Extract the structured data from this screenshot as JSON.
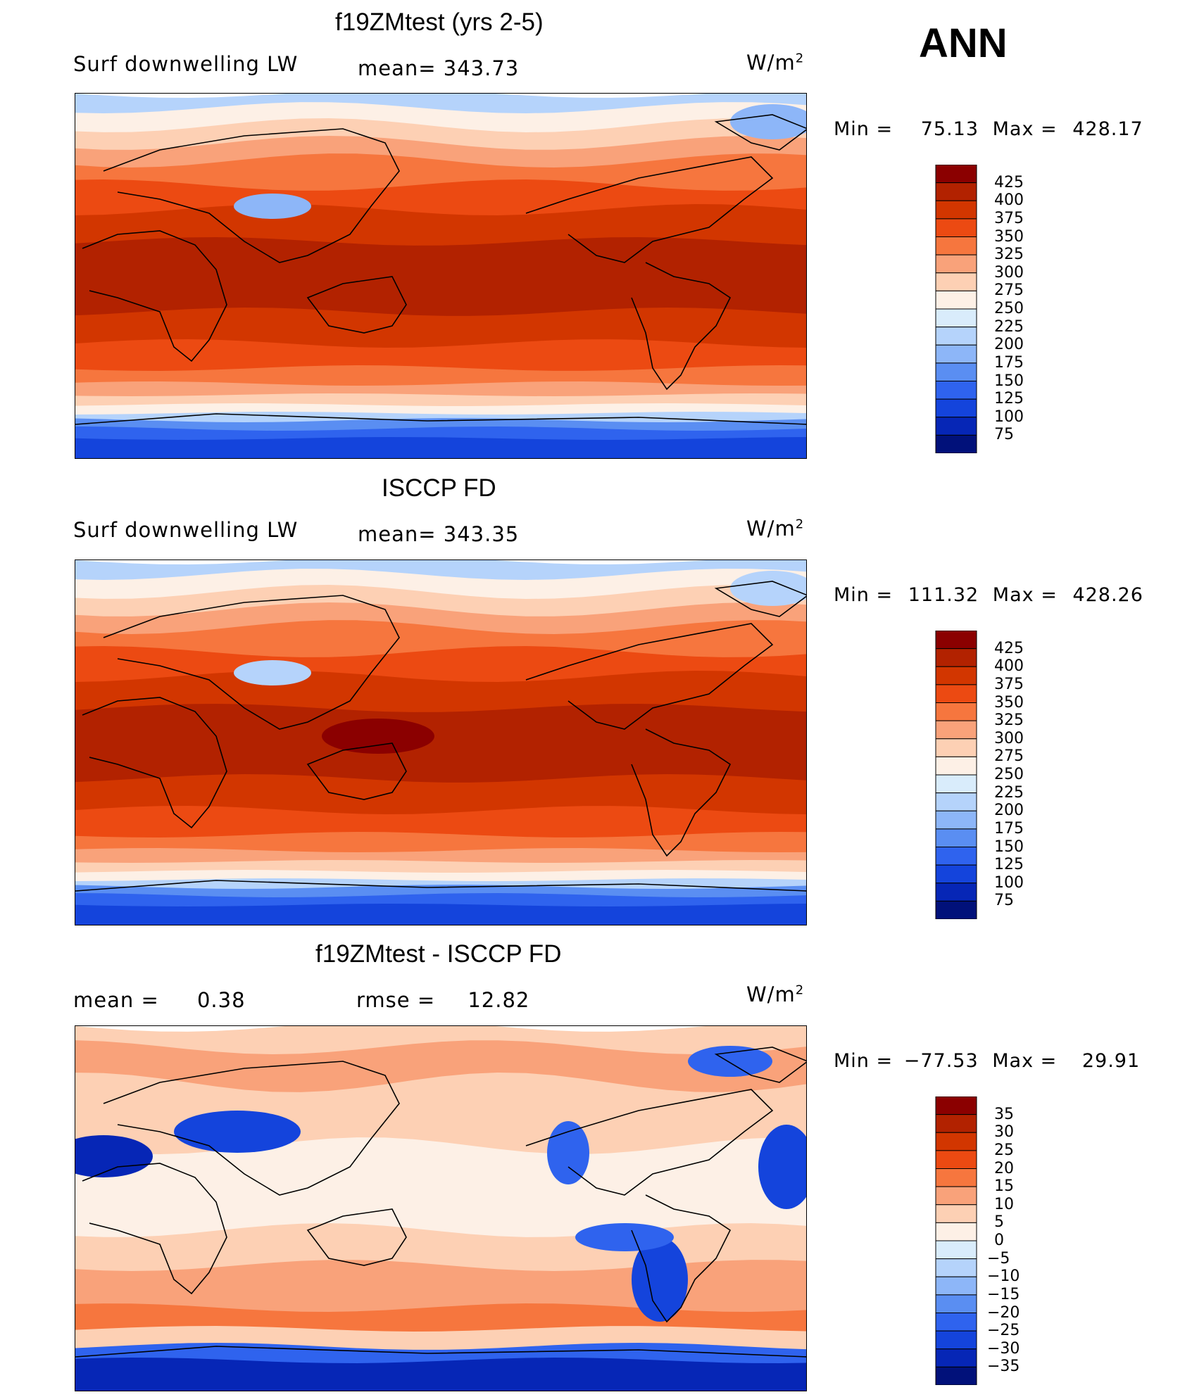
{
  "season": "ANN",
  "units_prefix": "W/m",
  "units_sup": "2",
  "panels": [
    {
      "title": "f19ZMtest (yrs 2-5)",
      "left_label": "Surf downwelling LW",
      "center_label": "mean= 343.73",
      "min_label": "Min =",
      "min_value": "75.13",
      "max_label": "Max =",
      "max_value": "428.17"
    },
    {
      "title": "ISCCP FD",
      "left_label": "Surf downwelling LW",
      "center_label": "mean= 343.35",
      "min_label": "Min =",
      "min_value": "111.32",
      "max_label": "Max =",
      "max_value": "428.26"
    },
    {
      "title": "f19ZMtest - ISCCP FD",
      "left_label": "mean =",
      "left_value": "0.38",
      "center_label": "rmse =",
      "center_value": "12.82",
      "min_label": "Min =",
      "min_value": "−77.53",
      "max_label": "Max =",
      "max_value": "29.91"
    }
  ],
  "chart_data": [
    {
      "type": "heatmap",
      "title": "f19ZMtest (yrs 2-5)",
      "variable": "Surf downwelling LW",
      "units": "W/m2",
      "mean": 343.73,
      "min": 75.13,
      "max": 428.17,
      "colorbar_levels": [
        "425",
        "400",
        "375",
        "350",
        "325",
        "300",
        "275",
        "250",
        "225",
        "200",
        "175",
        "150",
        "125",
        "100",
        "75"
      ],
      "colorbar_colors": [
        "#8b0000",
        "#b22200",
        "#d23600",
        "#ec4a12",
        "#f6763e",
        "#f9a27a",
        "#fdd0b4",
        "#fdf0e6",
        "#d9ecfb",
        "#b5d3fb",
        "#8db6f8",
        "#5a8ef2",
        "#2f63ee",
        "#1444dc",
        "#0626b6",
        "#01117a"
      ]
    },
    {
      "type": "heatmap",
      "title": "ISCCP FD",
      "variable": "Surf downwelling LW",
      "units": "W/m2",
      "mean": 343.35,
      "min": 111.32,
      "max": 428.26,
      "colorbar_levels": [
        "425",
        "400",
        "375",
        "350",
        "325",
        "300",
        "275",
        "250",
        "225",
        "200",
        "175",
        "150",
        "125",
        "100",
        "75"
      ],
      "colorbar_colors": [
        "#8b0000",
        "#b22200",
        "#d23600",
        "#ec4a12",
        "#f6763e",
        "#f9a27a",
        "#fdd0b4",
        "#fdf0e6",
        "#d9ecfb",
        "#b5d3fb",
        "#8db6f8",
        "#5a8ef2",
        "#2f63ee",
        "#1444dc",
        "#0626b6",
        "#01117a"
      ]
    },
    {
      "type": "heatmap",
      "title": "f19ZMtest - ISCCP FD",
      "units": "W/m2",
      "mean": 0.38,
      "rmse": 12.82,
      "min": -77.53,
      "max": 29.91,
      "colorbar_levels": [
        "35",
        "30",
        "25",
        "20",
        "15",
        "10",
        "5",
        "0",
        "−5",
        "−10",
        "−15",
        "−20",
        "−25",
        "−30",
        "−35"
      ],
      "colorbar_colors": [
        "#8b0000",
        "#b22200",
        "#d23600",
        "#ec4a12",
        "#f6763e",
        "#f9a27a",
        "#fdd0b4",
        "#fdf0e6",
        "#d9ecfb",
        "#b5d3fb",
        "#8db6f8",
        "#5a8ef2",
        "#2f63ee",
        "#1444dc",
        "#0626b6",
        "#01117a"
      ]
    }
  ]
}
